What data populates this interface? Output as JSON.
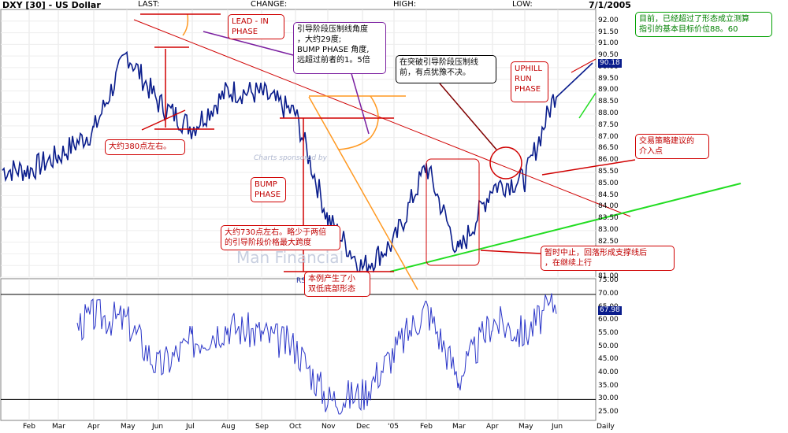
{
  "header": {
    "symbol": "DXY [30] - US Dollar",
    "last_label": "LAST:",
    "change_label": "CHANGE:",
    "high_label": "HIGH:",
    "low_label": "LOW:",
    "date": "7/1/2005"
  },
  "price_axis": {
    "ticks": [
      "92.00",
      "91.50",
      "91.00",
      "90.50",
      "90.00",
      "89.50",
      "89.00",
      "88.50",
      "88.00",
      "87.50",
      "87.00",
      "86.50",
      "86.00",
      "85.50",
      "85.00",
      "84.50",
      "84.00",
      "83.50",
      "83.00",
      "82.50",
      "82.00",
      "81.50",
      "81.00"
    ],
    "last_price": "90.18"
  },
  "rsi_axis": {
    "label": "RSI (D)",
    "ticks": [
      "75.00",
      "70.00",
      "65.00",
      "60.00",
      "55.00",
      "50.00",
      "45.00",
      "40.00",
      "35.00",
      "30.00",
      "25.00"
    ],
    "last_value": "67.98"
  },
  "x_axis": {
    "months": [
      "Feb",
      "Mar",
      "Apr",
      "May",
      "Jun",
      "Jul",
      "Aug",
      "Sep",
      "Oct",
      "Nov",
      "Dec",
      "'05",
      "Feb",
      "Mar",
      "Apr",
      "May",
      "Jun",
      "Daily"
    ]
  },
  "annotations": {
    "lead_in": "LEAD - IN\nPHASE",
    "lead_in_note": "引导阶段压制线角度\n，大约29度;\nBUMP PHASE 角度,\n远超过前者的1。5倍",
    "hesitation": "在突破引导阶段压制线\n前，有点犹豫不决。",
    "uphill": "UPHILL\nRUN\nPHASE",
    "target": "目前，已经超过了形态成立测算\n指引的基本目标价位88。60",
    "entry": "交易策略建议的\n介入点",
    "pts380": "大约380点左右。",
    "bump": "BUMP\nPHASE",
    "pts730": "大约730点左右。略少于两倍\n的引导阶段价格最大跨度",
    "double_bottom": "本例产生了小\n双低底部形态",
    "pause": "暂时中止，回落形成支撑线后\n，在继续上行"
  },
  "watermark": {
    "brand": "Man Financial",
    "sponsor": "Charts sponsored by"
  },
  "colors": {
    "price_line": "#0a1d8c",
    "rsi_line": "#2a35c8",
    "resistance": "#d00000",
    "support": "#22dd22",
    "bump_trend": "#ff9922",
    "annotation": "#d00000"
  },
  "chart_data": [
    {
      "type": "line",
      "title": "DXY [30] - US Dollar",
      "x": [
        "Feb",
        "Mar",
        "Apr",
        "May",
        "Jun",
        "Jul",
        "Aug",
        "Sep",
        "Oct",
        "Nov",
        "Dec",
        "'05",
        "Feb",
        "Mar",
        "Apr",
        "May",
        "Jun"
      ],
      "series": [
        {
          "values": [
            85.6,
            86.2,
            87.3,
            90.6,
            88.5,
            87.4,
            89.0,
            88.9,
            88.0,
            83.5,
            81.4,
            82.5,
            85.8,
            82.0,
            84.9,
            85.2,
            89.2
          ]
        }
      ],
      "ylim": [
        81.0,
        92.5
      ],
      "grid": true
    },
    {
      "type": "line",
      "title": "RSI (D)",
      "x": [
        "Feb",
        "Mar",
        "Apr",
        "May",
        "Jun",
        "Jul",
        "Aug",
        "Sep",
        "Oct",
        "Nov",
        "Dec",
        "'05",
        "Feb",
        "Mar",
        "Apr",
        "May",
        "Jun"
      ],
      "series": [
        {
          "values": [
            52,
            54,
            62,
            60,
            42,
            52,
            58,
            55,
            50,
            30,
            32,
            48,
            65,
            38,
            60,
            55,
            68
          ]
        }
      ],
      "ylim": [
        22,
        76
      ],
      "grid": true
    }
  ]
}
